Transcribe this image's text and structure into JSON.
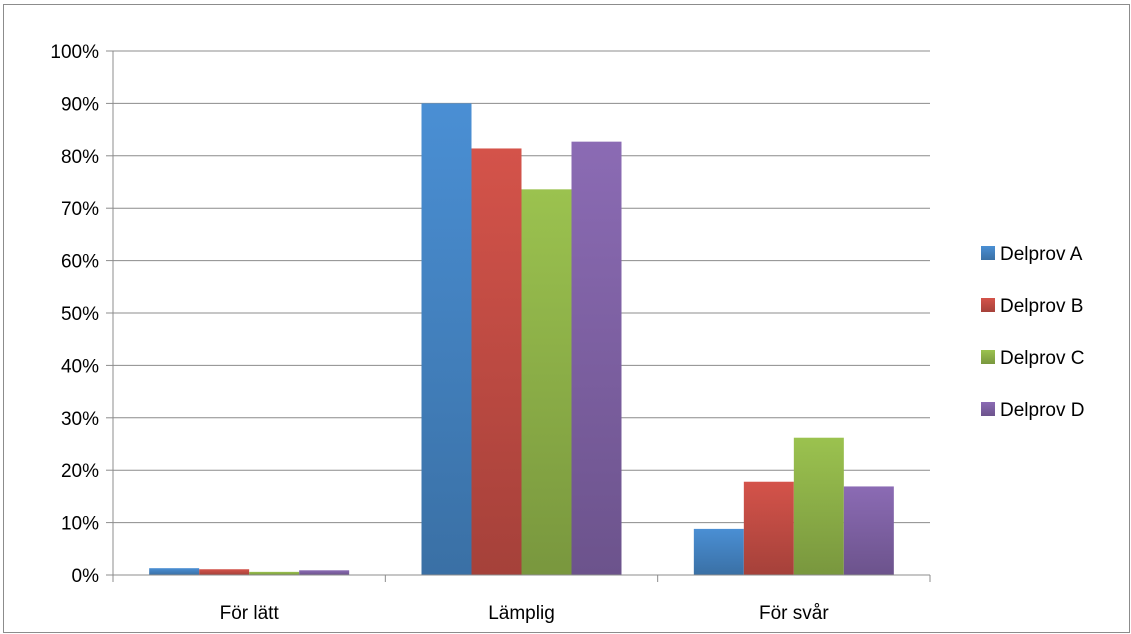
{
  "chart_data": {
    "type": "bar",
    "categories": [
      "För lätt",
      "Lämplig",
      "För svår"
    ],
    "series": [
      {
        "name": "Delprov A",
        "color": "#4a8fd4",
        "values": [
          1.3,
          90.0,
          8.8
        ]
      },
      {
        "name": "Delprov B",
        "color": "#d4534a",
        "values": [
          1.1,
          81.4,
          17.8
        ]
      },
      {
        "name": "Delprov C",
        "color": "#9bc24f",
        "values": [
          0.6,
          73.6,
          26.2
        ]
      },
      {
        "name": "Delprov D",
        "color": "#8b6bb4",
        "values": [
          0.9,
          82.7,
          16.9
        ]
      }
    ],
    "yticks": [
      "0%",
      "10%",
      "20%",
      "30%",
      "40%",
      "50%",
      "60%",
      "70%",
      "80%",
      "90%",
      "100%"
    ],
    "ylim": [
      0,
      100
    ],
    "grid": true,
    "legend_position": "right"
  }
}
